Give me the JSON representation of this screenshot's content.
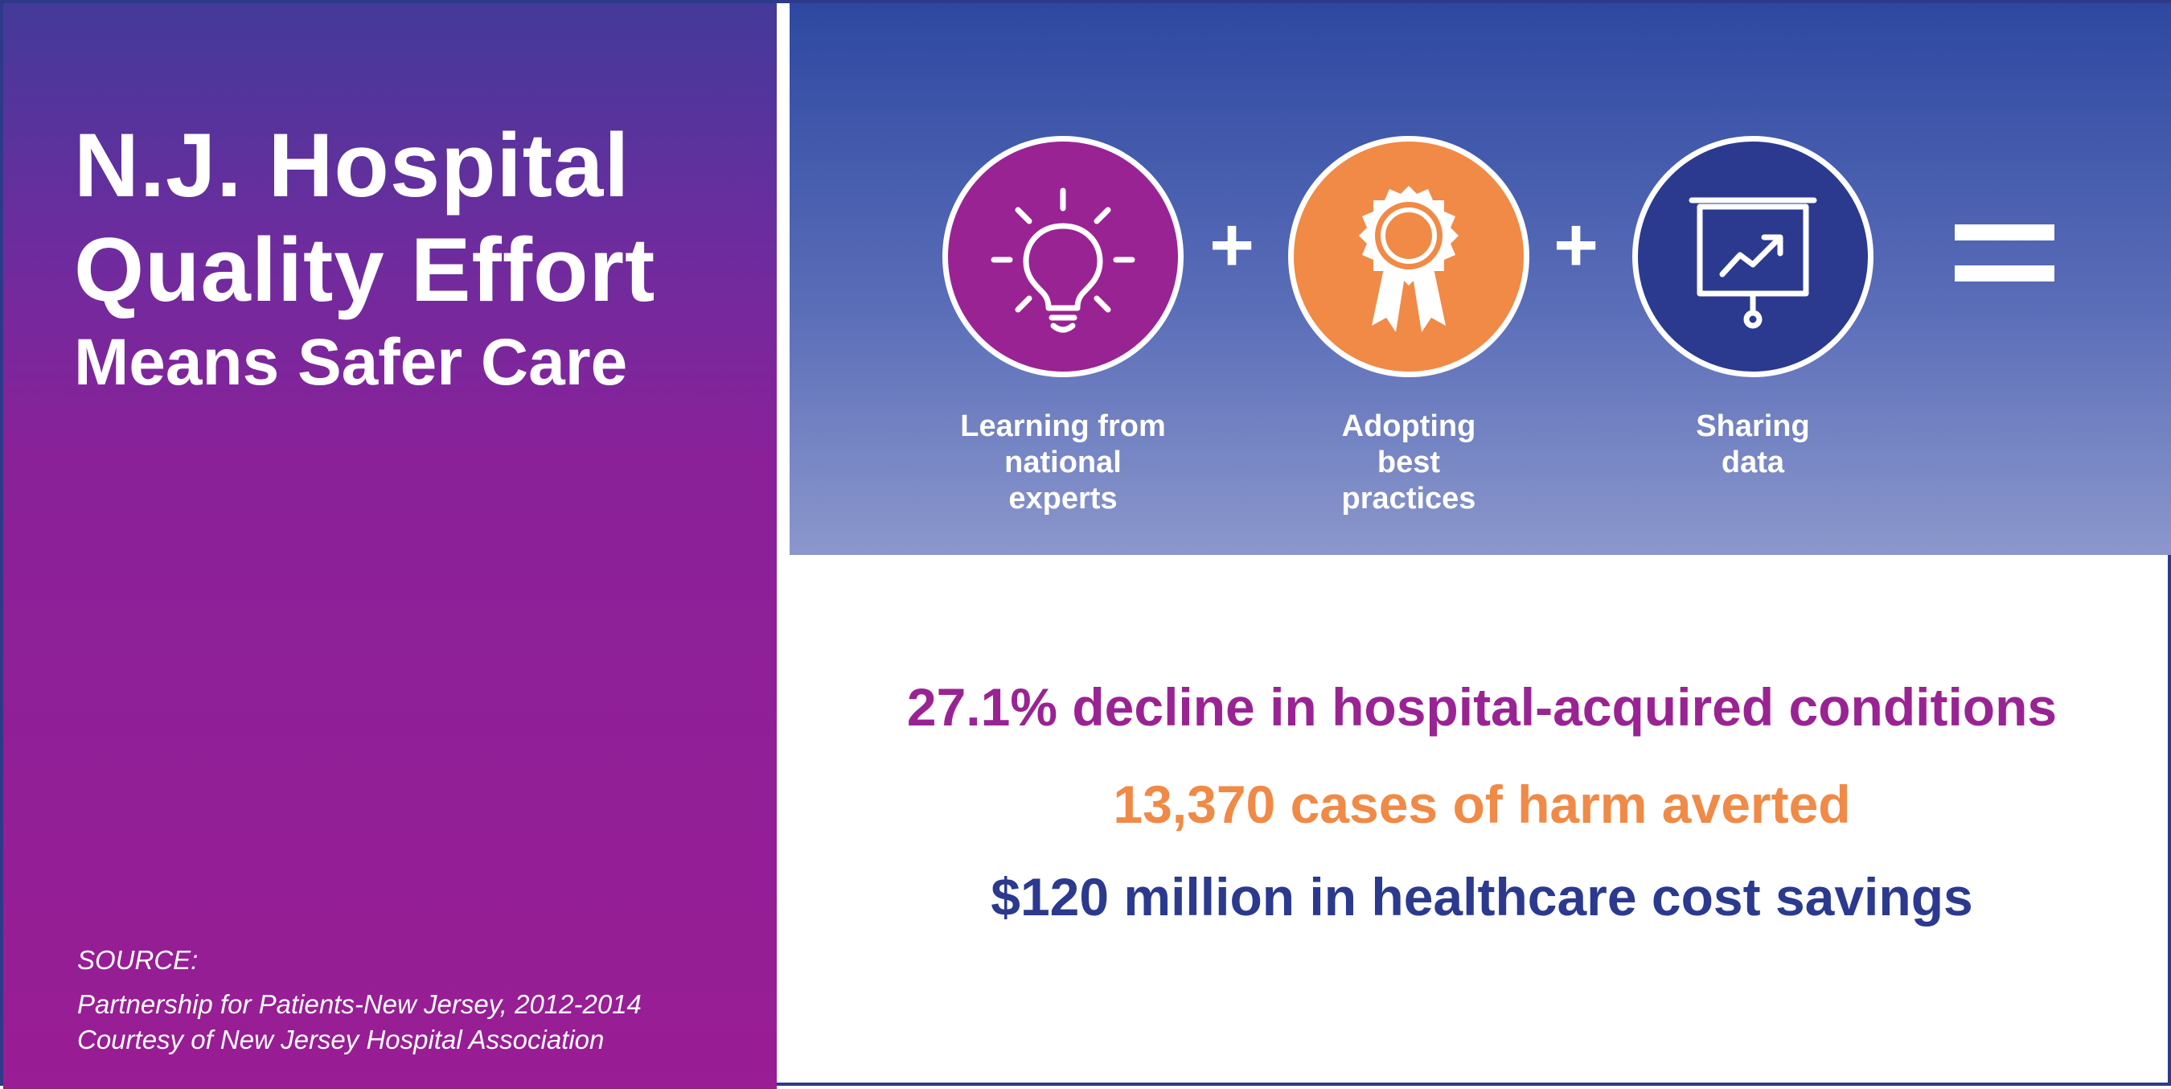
{
  "title": {
    "line1": "N.J. Hospital",
    "line2": "Quality Effort",
    "line3": "Means Safer Care"
  },
  "source": {
    "heading": "SOURCE:",
    "line1": "Partnership for Patients-New Jersey, 2012-2014",
    "line2": "Courtesy of New Jersey Hospital Association"
  },
  "steps": [
    {
      "icon": "lightbulb-icon",
      "color": "#9a2394",
      "lines": [
        "Learning from",
        "national",
        "experts"
      ]
    },
    {
      "icon": "ribbon-award-icon",
      "color": "#f08a46",
      "lines": [
        "Adopting",
        "best",
        "practices"
      ]
    },
    {
      "icon": "presentation-chart-icon",
      "color": "#2b3a8e",
      "lines": [
        "Sharing",
        "data"
      ]
    }
  ],
  "operators": {
    "plus": "+",
    "equals": "="
  },
  "results": [
    {
      "text": "27.1% decline in hospital-acquired conditions",
      "color": "#9a2394"
    },
    {
      "text": "13,370 cases of harm averted",
      "color": "#f08a46"
    },
    {
      "text": "$120 million in healthcare cost savings",
      "color": "#2b3a8e"
    }
  ]
}
